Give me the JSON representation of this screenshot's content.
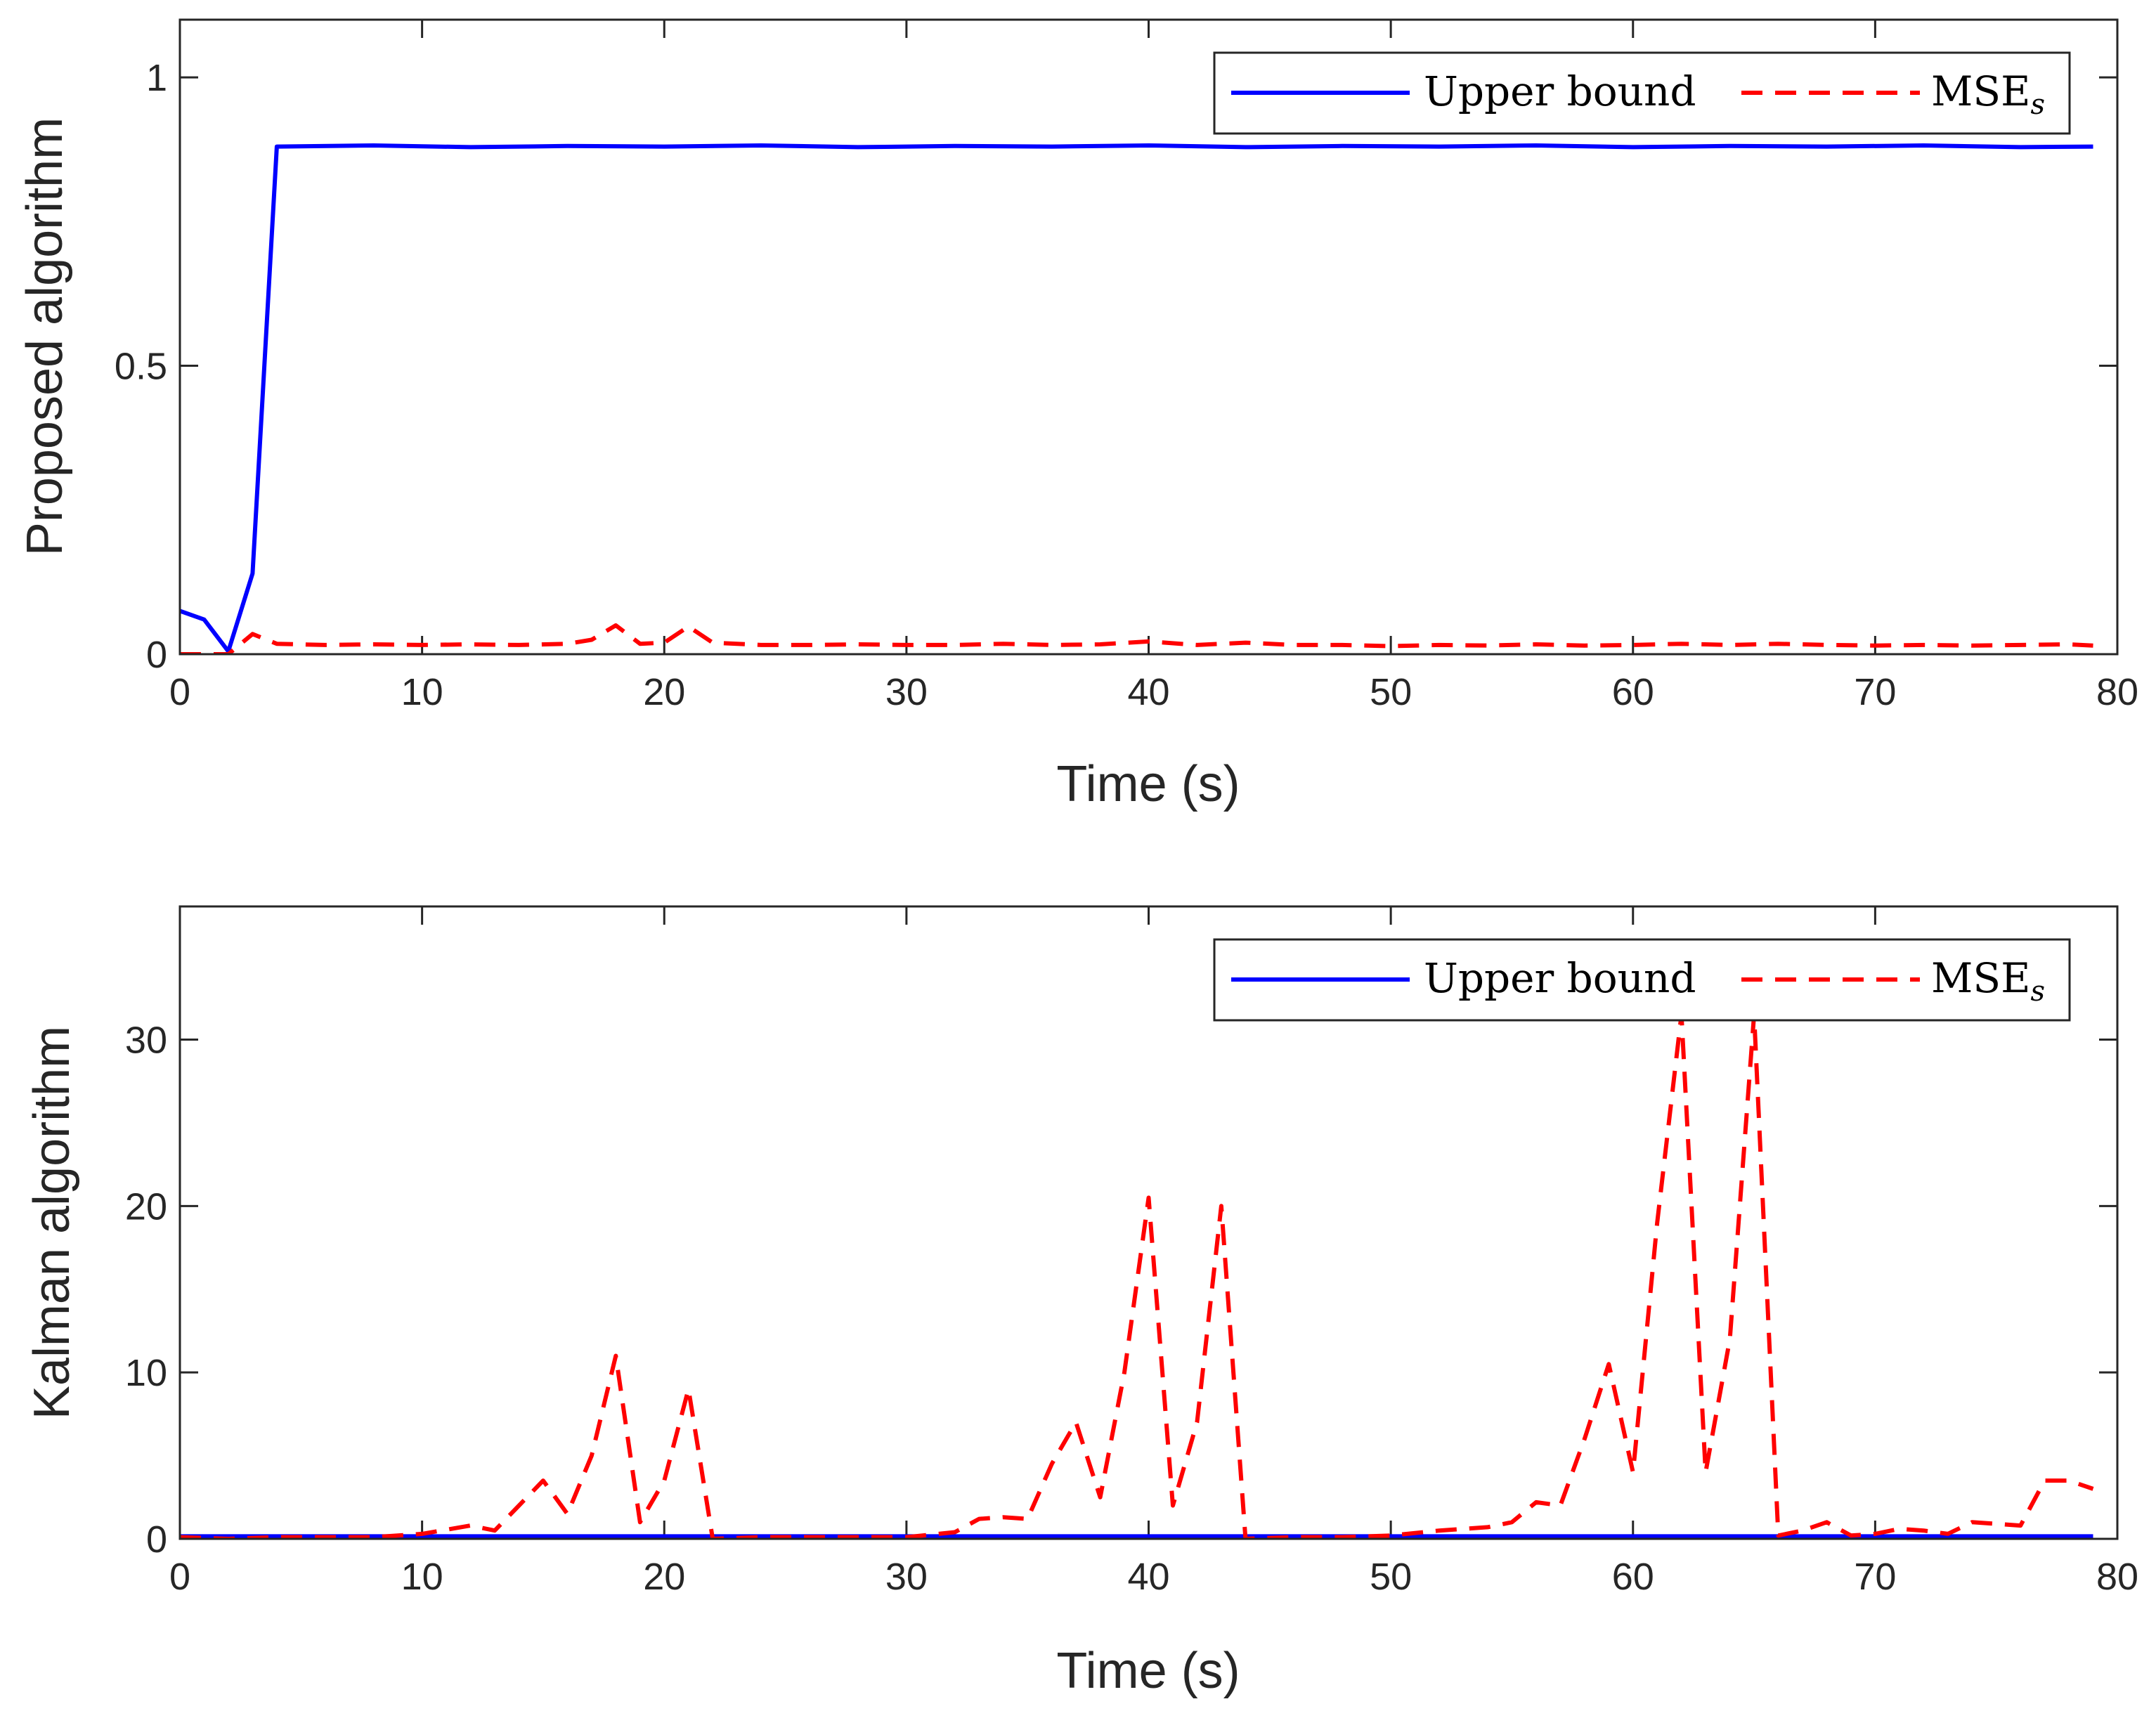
{
  "chart_data": [
    {
      "type": "line",
      "title": "",
      "xlabel": "Time (s)",
      "ylabel": "Proposed algorithm",
      "xlim": [
        0,
        80
      ],
      "ylim": [
        0,
        1.1
      ],
      "xticks": [
        0,
        10,
        20,
        30,
        40,
        50,
        60,
        70,
        80
      ],
      "xtick_labels": [
        "0",
        "10",
        "20",
        "30",
        "40",
        "50",
        "60",
        "70",
        "80"
      ],
      "yticks": [
        0,
        0.5,
        1
      ],
      "ytick_labels": [
        "0",
        "0.5",
        "1"
      ],
      "grid": false,
      "legend": {
        "position": "top-right",
        "orientation": "horizontal"
      },
      "series": [
        {
          "name": "Upper bound",
          "color": "#0000ff",
          "style": "solid",
          "x": [
            0,
            1,
            2,
            3,
            4,
            8,
            12,
            16,
            20,
            24,
            28,
            32,
            36,
            40,
            44,
            48,
            52,
            56,
            60,
            64,
            68,
            72,
            76,
            79
          ],
          "y": [
            0.075,
            0.06,
            0.005,
            0.14,
            0.88,
            0.882,
            0.879,
            0.881,
            0.88,
            0.882,
            0.879,
            0.881,
            0.88,
            0.882,
            0.879,
            0.881,
            0.88,
            0.882,
            0.879,
            0.881,
            0.88,
            0.882,
            0.879,
            0.88
          ]
        },
        {
          "name": "MSE",
          "name_subscript": "s",
          "color": "#ff0000",
          "style": "dashed",
          "x": [
            0,
            1,
            2,
            3,
            4,
            6,
            8,
            10,
            12,
            14,
            16,
            17,
            18,
            19,
            20,
            21,
            22,
            24,
            26,
            28,
            30,
            32,
            34,
            36,
            38,
            40,
            42,
            44,
            46,
            48,
            50,
            52,
            54,
            56,
            58,
            60,
            62,
            64,
            66,
            68,
            70,
            72,
            74,
            76,
            78,
            79
          ],
          "y": [
            0.0,
            0.0,
            0.0,
            0.035,
            0.018,
            0.016,
            0.017,
            0.016,
            0.017,
            0.016,
            0.018,
            0.025,
            0.05,
            0.018,
            0.02,
            0.048,
            0.02,
            0.016,
            0.016,
            0.017,
            0.016,
            0.016,
            0.018,
            0.016,
            0.017,
            0.022,
            0.016,
            0.02,
            0.016,
            0.016,
            0.014,
            0.016,
            0.015,
            0.017,
            0.015,
            0.016,
            0.018,
            0.016,
            0.018,
            0.016,
            0.015,
            0.016,
            0.015,
            0.016,
            0.017,
            0.015
          ]
        }
      ]
    },
    {
      "type": "line",
      "title": "",
      "xlabel": "Time (s)",
      "ylabel": "Kalman algorithm",
      "xlim": [
        0,
        80
      ],
      "ylim": [
        0,
        38
      ],
      "xticks": [
        0,
        10,
        20,
        30,
        40,
        50,
        60,
        70,
        80
      ],
      "xtick_labels": [
        "0",
        "10",
        "20",
        "30",
        "40",
        "50",
        "60",
        "70",
        "80"
      ],
      "yticks": [
        0,
        10,
        20,
        30
      ],
      "ytick_labels": [
        "0",
        "10",
        "20",
        "30"
      ],
      "grid": false,
      "legend": {
        "position": "top-right",
        "orientation": "horizontal"
      },
      "series": [
        {
          "name": "Upper bound",
          "color": "#0000ff",
          "style": "solid",
          "x": [
            0,
            10,
            20,
            30,
            40,
            50,
            60,
            70,
            79
          ],
          "y": [
            0.15,
            0.15,
            0.15,
            0.15,
            0.15,
            0.15,
            0.15,
            0.15,
            0.15
          ]
        },
        {
          "name": "MSE",
          "name_subscript": "s",
          "color": "#ff0000",
          "style": "dashed",
          "x": [
            0,
            2,
            4,
            6,
            8,
            10,
            12,
            13,
            14,
            15,
            16,
            17,
            18,
            19,
            20,
            21,
            22,
            24,
            26,
            28,
            30,
            32,
            33,
            34,
            35,
            36,
            37,
            38,
            39,
            40,
            41,
            42,
            43,
            44,
            46,
            48,
            50,
            52,
            54,
            55,
            56,
            57,
            58,
            59,
            60,
            61,
            62,
            63,
            64,
            65,
            66,
            67,
            68,
            69,
            70,
            71,
            72,
            73,
            74,
            75,
            76,
            77,
            78,
            79
          ],
          "y": [
            0.1,
            0.0,
            0.1,
            0.1,
            0.1,
            0.3,
            0.8,
            0.5,
            2.0,
            3.5,
            1.5,
            5.0,
            11.0,
            1.0,
            3.5,
            9.0,
            0.0,
            0.1,
            0.1,
            0.1,
            0.1,
            0.4,
            1.2,
            1.3,
            1.2,
            4.5,
            7.0,
            2.5,
            10.0,
            20.5,
            2.0,
            7.0,
            20.0,
            0.0,
            0.1,
            0.1,
            0.2,
            0.5,
            0.7,
            1.0,
            2.2,
            2.0,
            6.0,
            10.5,
            4.0,
            19.0,
            31.5,
            4.0,
            12.0,
            31.5,
            0.2,
            0.5,
            1.0,
            0.2,
            0.3,
            0.6,
            0.5,
            0.3,
            1.0,
            0.9,
            0.8,
            3.5,
            3.5,
            3.0
          ]
        }
      ]
    }
  ]
}
